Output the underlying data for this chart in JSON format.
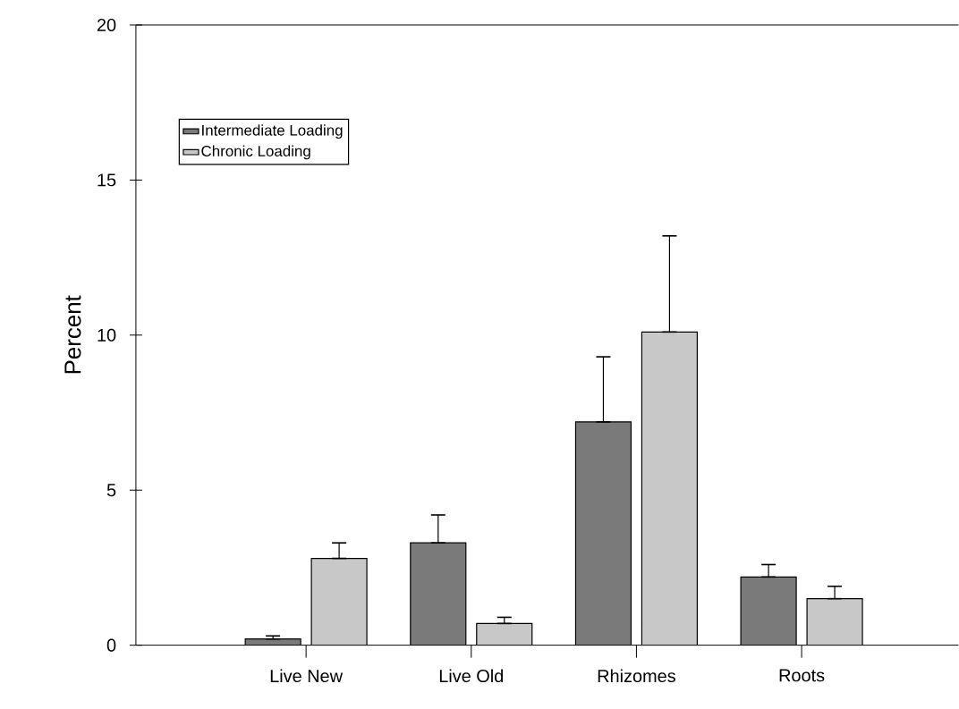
{
  "chart_data": {
    "type": "bar",
    "ylabel": "Percent",
    "categories": [
      "Live New",
      "Live Old",
      "Rhizomes",
      "Roots"
    ],
    "series": [
      {
        "name": "Intermediate Loading",
        "color": "#7a7a7a",
        "values": [
          0.2,
          3.3,
          7.2,
          2.2
        ],
        "errors": [
          [
            0.2,
            0.3
          ],
          [
            3.3,
            4.2
          ],
          [
            7.2,
            9.3
          ],
          [
            2.2,
            2.6
          ]
        ]
      },
      {
        "name": "Chronic Loading",
        "color": "#c8c8c8",
        "values": [
          2.8,
          0.7,
          10.1,
          1.5
        ],
        "errors": [
          [
            2.8,
            3.3
          ],
          [
            0.7,
            0.9
          ],
          [
            10.1,
            13.2
          ],
          [
            1.5,
            1.9
          ]
        ]
      }
    ],
    "ylim": [
      0,
      20
    ],
    "yticks": [
      0,
      5,
      10,
      15,
      20
    ],
    "grid": false,
    "legend": "top left"
  }
}
